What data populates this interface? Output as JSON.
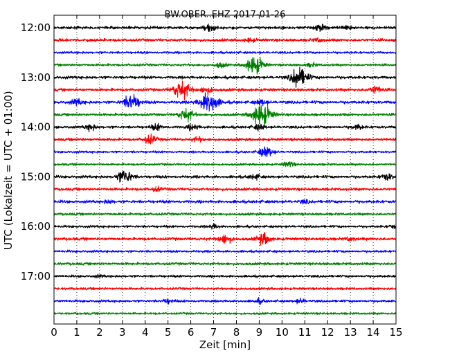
{
  "chart_data": {
    "type": "line",
    "title": "BW.OBER..EHZ 2017-01-26",
    "xlabel": "Zeit  [min]",
    "ylabel": "UTC (Lokalzeit = UTC + 01:00)",
    "xlim": [
      0,
      15
    ],
    "x_ticks": [
      "0",
      "1",
      "2",
      "3",
      "4",
      "5",
      "6",
      "7",
      "8",
      "9",
      "10",
      "11",
      "12",
      "13",
      "14",
      "15"
    ],
    "y_tick_labels": [
      "12:00",
      "13:00",
      "14:00",
      "15:00",
      "16:00",
      "17:00"
    ],
    "grid": "vertical dotted lines at each minute",
    "trace_colors": [
      "#000000",
      "#ff0000",
      "#0000ff",
      "#008000"
    ],
    "traces": [
      {
        "start": "12:00",
        "color": "#000000",
        "events": [
          {
            "t": 6.8,
            "amp": 1.0
          },
          {
            "t": 11.7,
            "amp": 0.8
          },
          {
            "t": 12.8,
            "amp": 0.6
          }
        ]
      },
      {
        "start": "12:15",
        "color": "#ff0000",
        "events": [
          {
            "t": 8.6,
            "amp": 0.5
          },
          {
            "t": 11.6,
            "amp": 0.5
          }
        ]
      },
      {
        "start": "12:30",
        "color": "#0000ff",
        "events": []
      },
      {
        "start": "12:45",
        "color": "#008000",
        "events": [
          {
            "t": 7.3,
            "amp": 0.7
          },
          {
            "t": 8.8,
            "amp": 2.6
          },
          {
            "t": 11.3,
            "amp": 0.5
          }
        ]
      },
      {
        "start": "13:00",
        "color": "#000000",
        "events": [
          {
            "t": 10.6,
            "amp": 0.9
          },
          {
            "t": 10.8,
            "amp": 2.4
          }
        ]
      },
      {
        "start": "13:15",
        "color": "#ff0000",
        "events": [
          {
            "t": 5.6,
            "amp": 2.6
          },
          {
            "t": 6.7,
            "amp": 1.0
          },
          {
            "t": 14.1,
            "amp": 1.0
          }
        ]
      },
      {
        "start": "13:30",
        "color": "#0000ff",
        "events": [
          {
            "t": 1.0,
            "amp": 0.8
          },
          {
            "t": 3.4,
            "amp": 2.2
          },
          {
            "t": 6.8,
            "amp": 3.0
          },
          {
            "t": 9.1,
            "amp": 0.8
          }
        ]
      },
      {
        "start": "13:45",
        "color": "#008000",
        "events": [
          {
            "t": 5.8,
            "amp": 1.8
          },
          {
            "t": 9.1,
            "amp": 3.3
          }
        ]
      },
      {
        "start": "14:00",
        "color": "#000000",
        "events": [
          {
            "t": 1.6,
            "amp": 0.8
          },
          {
            "t": 4.5,
            "amp": 0.8
          },
          {
            "t": 6.1,
            "amp": 0.8
          },
          {
            "t": 9.0,
            "amp": 0.8
          },
          {
            "t": 13.3,
            "amp": 0.7
          }
        ]
      },
      {
        "start": "14:15",
        "color": "#ff0000",
        "events": [
          {
            "t": 4.2,
            "amp": 1.2
          },
          {
            "t": 6.3,
            "amp": 0.6
          }
        ]
      },
      {
        "start": "14:30",
        "color": "#0000ff",
        "events": [
          {
            "t": 9.3,
            "amp": 1.6
          }
        ]
      },
      {
        "start": "14:45",
        "color": "#008000",
        "events": [
          {
            "t": 10.3,
            "amp": 0.8
          }
        ]
      },
      {
        "start": "15:00",
        "color": "#000000",
        "events": [
          {
            "t": 3.1,
            "amp": 2.0
          },
          {
            "t": 8.8,
            "amp": 0.7
          },
          {
            "t": 14.6,
            "amp": 1.0
          }
        ]
      },
      {
        "start": "15:15",
        "color": "#ff0000",
        "events": [
          {
            "t": 4.5,
            "amp": 0.5
          }
        ]
      },
      {
        "start": "15:30",
        "color": "#0000ff",
        "events": [
          {
            "t": 2.4,
            "amp": 0.4
          },
          {
            "t": 11.0,
            "amp": 0.4
          }
        ]
      },
      {
        "start": "15:45",
        "color": "#008000",
        "events": []
      },
      {
        "start": "16:00",
        "color": "#000000",
        "events": [
          {
            "t": 7.0,
            "amp": 0.6
          },
          {
            "t": 14.9,
            "amp": 0.5
          }
        ]
      },
      {
        "start": "16:15",
        "color": "#ff0000",
        "events": [
          {
            "t": 7.5,
            "amp": 1.3
          },
          {
            "t": 9.2,
            "amp": 1.6
          },
          {
            "t": 13.0,
            "amp": 0.5
          }
        ]
      },
      {
        "start": "16:30",
        "color": "#0000ff",
        "events": []
      },
      {
        "start": "16:45",
        "color": "#008000",
        "events": []
      },
      {
        "start": "17:00",
        "color": "#000000",
        "events": [
          {
            "t": 2.0,
            "amp": 0.3
          }
        ]
      },
      {
        "start": "17:15",
        "color": "#ff0000",
        "events": []
      },
      {
        "start": "17:30",
        "color": "#0000ff",
        "events": [
          {
            "t": 5.0,
            "amp": 0.6
          },
          {
            "t": 9.0,
            "amp": 0.5
          },
          {
            "t": 10.8,
            "amp": 0.6
          }
        ]
      },
      {
        "start": "17:45",
        "color": "#008000",
        "events": []
      }
    ]
  }
}
